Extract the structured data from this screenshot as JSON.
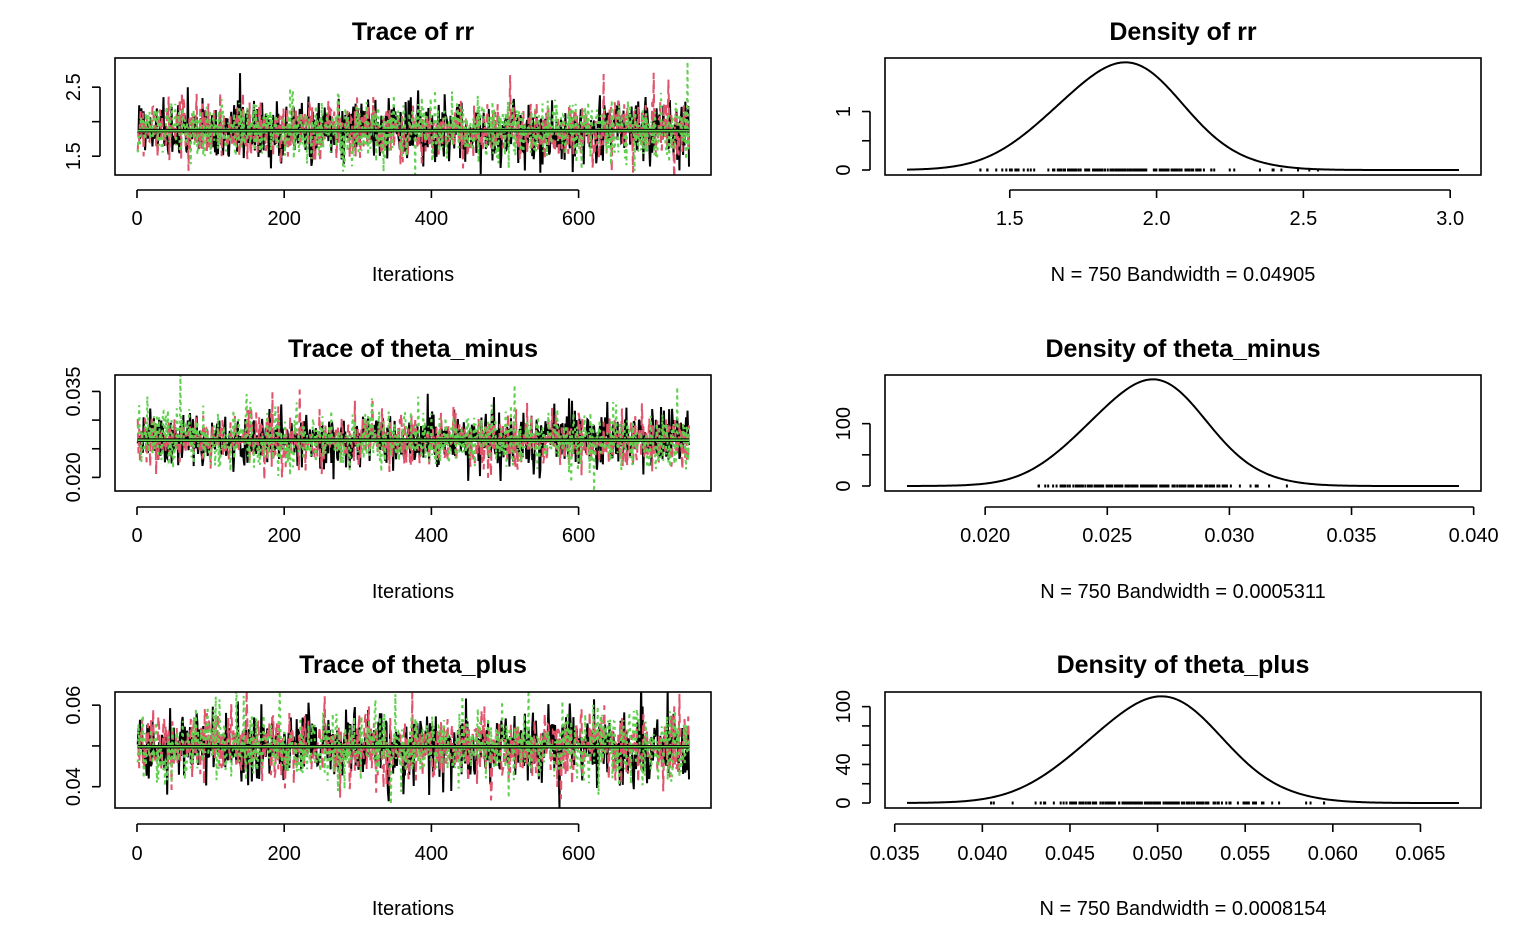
{
  "colors": {
    "chain1": "#000000",
    "chain2": "#DF536B",
    "chain3": "#61D04F",
    "axis": "#000000"
  },
  "chart_data": [
    {
      "id": "trace-rr",
      "type": "line",
      "title": "Trace of rr",
      "xlabel": "Iterations",
      "xlim": [
        0,
        750
      ],
      "ylim": [
        1.3,
        2.85
      ],
      "xticks": [
        0,
        200,
        400,
        600
      ],
      "yticks": [
        1.5,
        2.5
      ],
      "center": 1.87,
      "spread": 0.22,
      "series": [
        {
          "color": "#000000",
          "dash": ""
        },
        {
          "color": "#DF536B",
          "dash": "9,5"
        },
        {
          "color": "#61D04F",
          "dash": "3,4"
        }
      ]
    },
    {
      "id": "density-rr",
      "type": "line",
      "title": "Density of rr",
      "xlabel": "N = 750   Bandwidth = 0.04905",
      "xlim": [
        1.15,
        3.03
      ],
      "ylim": [
        0,
        1.83
      ],
      "xticks": [
        1.5,
        2.0,
        2.5,
        3.0
      ],
      "yticks": [
        0.0,
        1.0
      ],
      "mean": 1.87,
      "sd": 0.215,
      "rug_range": [
        1.4,
        2.55
      ]
    },
    {
      "id": "trace-theta-minus",
      "type": "line",
      "title": "Trace of theta_minus",
      "xlabel": "Iterations",
      "xlim": [
        0,
        750
      ],
      "ylim": [
        0.0185,
        0.037
      ],
      "xticks": [
        0,
        200,
        400,
        600
      ],
      "yticks": [
        0.02,
        0.035
      ],
      "center": 0.0265,
      "spread": 0.0024,
      "series": [
        {
          "color": "#000000",
          "dash": ""
        },
        {
          "color": "#DF536B",
          "dash": "9,5"
        },
        {
          "color": "#61D04F",
          "dash": "3,4"
        }
      ]
    },
    {
      "id": "density-theta-minus",
      "type": "line",
      "title": "Density of theta_minus",
      "xlabel": "N = 750   Bandwidth = 0.0005311",
      "xlim": [
        0.0168,
        0.0394
      ],
      "ylim": [
        0,
        170
      ],
      "xticks": [
        0.02,
        0.025,
        0.03,
        0.035,
        0.04
      ],
      "yticks": [
        0,
        100
      ],
      "mean": 0.0266,
      "sd": 0.0024,
      "rug_range": [
        0.0222,
        0.0325
      ]
    },
    {
      "id": "trace-theta-plus",
      "type": "line",
      "title": "Trace of theta_plus",
      "xlabel": "Iterations",
      "xlim": [
        0,
        750
      ],
      "ylim": [
        0.036,
        0.062
      ],
      "xticks": [
        0,
        200,
        400,
        600
      ],
      "yticks": [
        0.04,
        0.06
      ],
      "center": 0.0498,
      "spread": 0.0042,
      "series": [
        {
          "color": "#000000",
          "dash": ""
        },
        {
          "color": "#DF536B",
          "dash": "9,5"
        },
        {
          "color": "#61D04F",
          "dash": "3,4"
        }
      ]
    },
    {
      "id": "density-theta-plus",
      "type": "line",
      "title": "Density of theta_plus",
      "xlabel": "N = 750   Bandwidth = 0.0008154",
      "xlim": [
        0.0357,
        0.0672
      ],
      "ylim": [
        0,
        110
      ],
      "xticks": [
        0.035,
        0.04,
        0.045,
        0.05,
        0.055,
        0.06,
        0.065
      ],
      "yticks": [
        0,
        40,
        100
      ],
      "mean": 0.0498,
      "sd": 0.0038,
      "rug_range": [
        0.0405,
        0.0595
      ]
    }
  ]
}
